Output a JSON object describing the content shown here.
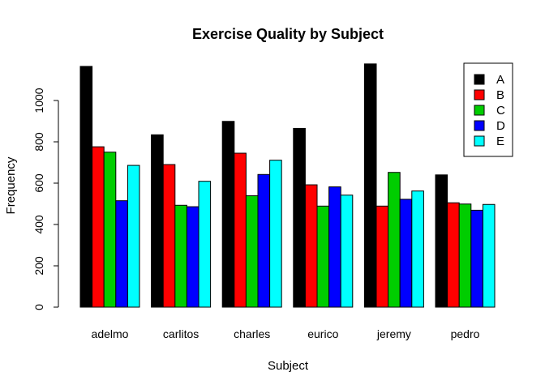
{
  "chart_data": {
    "type": "bar",
    "title": "Exercise Quality by Subject",
    "xlabel": "Subject",
    "ylabel": "Frequency",
    "categories": [
      "adelmo",
      "carlitos",
      "charles",
      "eurico",
      "jeremy",
      "pedro"
    ],
    "series": [
      {
        "name": "A",
        "color": "#000000",
        "values": [
          1165,
          834,
          899,
          865,
          1177,
          640
        ]
      },
      {
        "name": "B",
        "color": "#ff0000",
        "values": [
          776,
          690,
          745,
          592,
          489,
          505
        ]
      },
      {
        "name": "C",
        "color": "#00cd00",
        "values": [
          750,
          493,
          539,
          489,
          652,
          499
        ]
      },
      {
        "name": "D",
        "color": "#0000ff",
        "values": [
          515,
          486,
          642,
          582,
          522,
          469
        ]
      },
      {
        "name": "E",
        "color": "#00ffff",
        "values": [
          686,
          609,
          711,
          542,
          562,
          497
        ]
      }
    ],
    "ylim": [
      0,
      1200
    ],
    "yticks": [
      0,
      200,
      400,
      600,
      800,
      1000
    ],
    "legend_position": "top-right",
    "grid": false
  }
}
